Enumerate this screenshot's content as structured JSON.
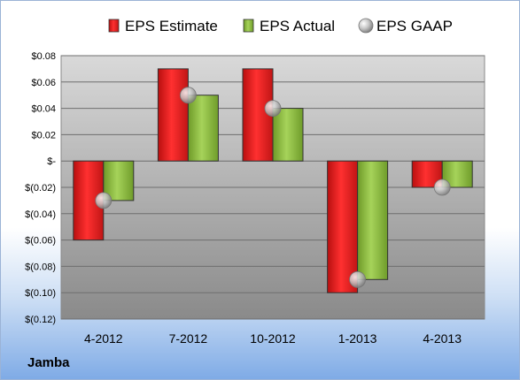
{
  "company_label": "Jamba",
  "colors": {
    "estimate": "#e02020",
    "actual": "#8cbd3c",
    "gaap": "#c0c0c0"
  },
  "chart_data": {
    "type": "bar",
    "categories": [
      "4-2012",
      "7-2012",
      "10-2012",
      "1-2013",
      "4-2013"
    ],
    "series": [
      {
        "name": "EPS Estimate",
        "type": "bar",
        "values": [
          -0.06,
          0.07,
          0.07,
          -0.1,
          -0.02
        ]
      },
      {
        "name": "EPS Actual",
        "type": "bar",
        "values": [
          -0.03,
          0.05,
          0.04,
          -0.09,
          -0.02
        ]
      },
      {
        "name": "EPS GAAP",
        "type": "scatter",
        "values": [
          -0.03,
          0.05,
          0.04,
          -0.09,
          -0.02
        ]
      }
    ],
    "ylim": [
      -0.12,
      0.08
    ],
    "y_ticks": [
      0.08,
      0.06,
      0.04,
      0.02,
      0,
      -0.02,
      -0.04,
      -0.06,
      -0.08,
      -0.1,
      -0.12
    ],
    "y_tick_labels": [
      "$0.08",
      "$0.06",
      "$0.04",
      "$0.02",
      "$-",
      "$(0.02)",
      "$(0.04)",
      "$(0.06)",
      "$(0.08)",
      "$(0.10)",
      "$(0.12)"
    ],
    "grid": true,
    "legend_position": "top"
  }
}
